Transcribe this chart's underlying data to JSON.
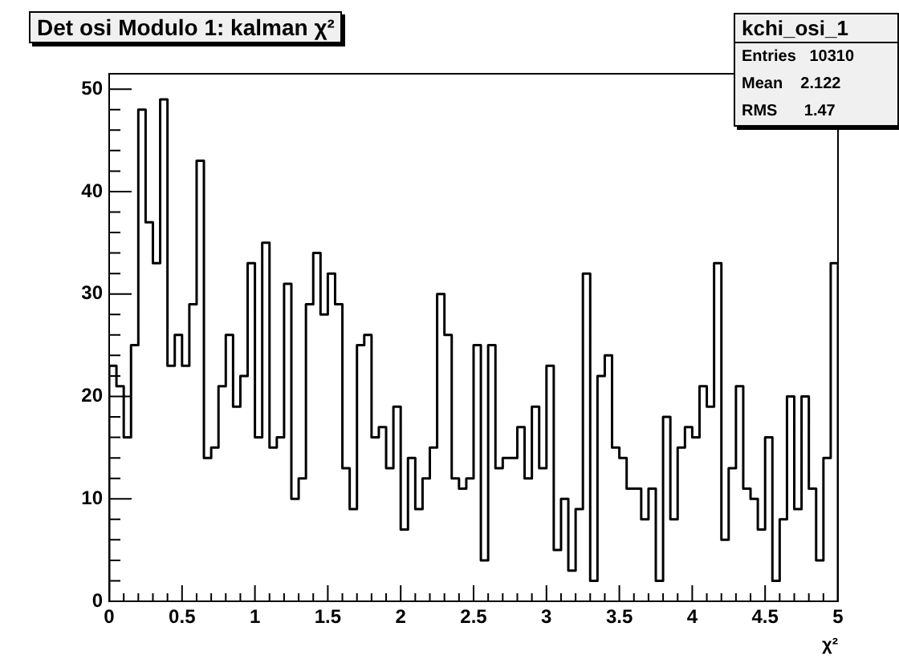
{
  "chart_data": {
    "type": "histogram",
    "title": "Det osi Modulo 1: kalman χ²",
    "xlabel": "χ²",
    "annotations": [
      "kchi_osi_1",
      "Entries   10310",
      "Mean    2.122",
      "RMS      1.47"
    ],
    "bins": [
      0,
      0.05,
      0.1,
      0.15,
      0.2,
      0.25,
      0.3,
      0.35,
      0.4,
      0.45,
      0.5,
      0.55,
      0.6,
      0.65,
      0.7,
      0.75,
      0.8,
      0.85,
      0.9,
      0.95,
      1,
      1.05,
      1.1,
      1.15,
      1.2,
      1.25,
      1.3,
      1.35,
      1.4,
      1.45,
      1.5,
      1.55,
      1.6,
      1.65,
      1.7,
      1.75,
      1.8,
      1.85,
      1.9,
      1.95,
      2,
      2.05,
      2.1,
      2.15,
      2.2,
      2.25,
      2.3,
      2.35,
      2.4,
      2.45,
      2.5,
      2.55,
      2.6,
      2.65,
      2.7,
      2.75,
      2.8,
      2.85,
      2.9,
      2.95,
      3,
      3.05,
      3.1,
      3.15,
      3.2,
      3.25,
      3.3,
      3.35,
      3.4,
      3.45,
      3.5,
      3.55,
      3.6,
      3.65,
      3.7,
      3.75,
      3.8,
      3.85,
      3.9,
      3.95,
      4,
      4.05,
      4.1,
      4.15,
      4.2,
      4.25,
      4.3,
      4.35,
      4.4,
      4.45,
      4.5,
      4.55,
      4.6,
      4.65,
      4.7,
      4.75,
      4.8,
      4.85,
      4.9,
      4.95,
      5
    ],
    "values": [
      23,
      21,
      16,
      25,
      48,
      37,
      33,
      49,
      23,
      26,
      23,
      29,
      43,
      14,
      15,
      21,
      26,
      19,
      22,
      33,
      16,
      35,
      15,
      16,
      31,
      10,
      12,
      29,
      34,
      28,
      32,
      29,
      13,
      9,
      25,
      26,
      16,
      17,
      13,
      19,
      7,
      14,
      9,
      12,
      15,
      30,
      26,
      12,
      11,
      12,
      25,
      4,
      25,
      13,
      14,
      14,
      17,
      12,
      19,
      13,
      23,
      5,
      10,
      3,
      9,
      32,
      2,
      22,
      24,
      15,
      14,
      11,
      11,
      8,
      11,
      2,
      18,
      8,
      15,
      17,
      16,
      21,
      19,
      33,
      6,
      13,
      21,
      11,
      10,
      7,
      16,
      2,
      8,
      20,
      9,
      20,
      11,
      4,
      14,
      33
    ],
    "color": "#000000",
    "xlim": [
      0,
      5
    ],
    "ylim": [
      0,
      51.5
    ],
    "xticks": [
      0,
      {
        "value": 0.1,
        "label": null
      },
      {
        "value": 0.2,
        "label": null
      },
      {
        "value": 0.3,
        "label": null
      },
      {
        "value": 0.4,
        "label": null
      },
      0.5,
      {
        "value": 0.6,
        "label": null
      },
      {
        "value": 0.7,
        "label": null
      },
      {
        "value": 0.8,
        "label": null
      },
      {
        "value": 0.9,
        "label": null
      },
      1,
      {
        "value": 1.1,
        "label": null
      },
      {
        "value": 1.2,
        "label": null
      },
      {
        "value": 1.3,
        "label": null
      },
      {
        "value": 1.4,
        "label": null
      },
      1.5,
      {
        "value": 1.6,
        "label": null
      },
      {
        "value": 1.7,
        "label": null
      },
      {
        "value": 1.8,
        "label": null
      },
      {
        "value": 1.9,
        "label": null
      },
      2,
      {
        "value": 2.1,
        "label": null
      },
      {
        "value": 2.2,
        "label": null
      },
      {
        "value": 2.3,
        "label": null
      },
      {
        "value": 2.4,
        "label": null
      },
      2.5,
      {
        "value": 2.6,
        "label": null
      },
      {
        "value": 2.7,
        "label": null
      },
      {
        "value": 2.8,
        "label": null
      },
      {
        "value": 2.9,
        "label": null
      },
      3,
      {
        "value": 3.1,
        "label": null
      },
      {
        "value": 3.2,
        "label": null
      },
      {
        "value": 3.3,
        "label": null
      },
      {
        "value": 3.4,
        "label": null
      },
      3.5,
      {
        "value": 3.6,
        "label": null
      },
      {
        "value": 3.7,
        "label": null
      },
      {
        "value": 3.8,
        "label": null
      },
      {
        "value": 3.9,
        "label": null
      },
      4,
      {
        "value": 4.1,
        "label": null
      },
      {
        "value": 4.2,
        "label": null
      },
      {
        "value": 4.3,
        "label": null
      },
      {
        "value": 4.4,
        "label": null
      },
      4.5,
      {
        "value": 4.6,
        "label": null
      },
      {
        "value": 4.7,
        "label": null
      },
      {
        "value": 4.8,
        "label": null
      },
      {
        "value": 4.9,
        "label": null
      },
      5
    ],
    "yticks": [
      0,
      {
        "value": 2,
        "label": null
      },
      {
        "value": 4,
        "label": null
      },
      {
        "value": 6,
        "label": null
      },
      {
        "value": 8,
        "label": null
      },
      10,
      {
        "value": 12,
        "label": null
      },
      {
        "value": 14,
        "label": null
      },
      {
        "value": 16,
        "label": null
      },
      {
        "value": 18,
        "label": null
      },
      20,
      {
        "value": 22,
        "label": null
      },
      {
        "value": 24,
        "label": null
      },
      {
        "value": 26,
        "label": null
      },
      {
        "value": 28,
        "label": null
      },
      30,
      {
        "value": 32,
        "label": null
      },
      {
        "value": 34,
        "label": null
      },
      {
        "value": 36,
        "label": null
      },
      {
        "value": 38,
        "label": null
      },
      40,
      {
        "value": 42,
        "label": null
      },
      {
        "value": 44,
        "label": null
      },
      {
        "value": 46,
        "label": null
      },
      {
        "value": 48,
        "label": null
      },
      50
    ],
    "grid": false,
    "legend": false
  }
}
